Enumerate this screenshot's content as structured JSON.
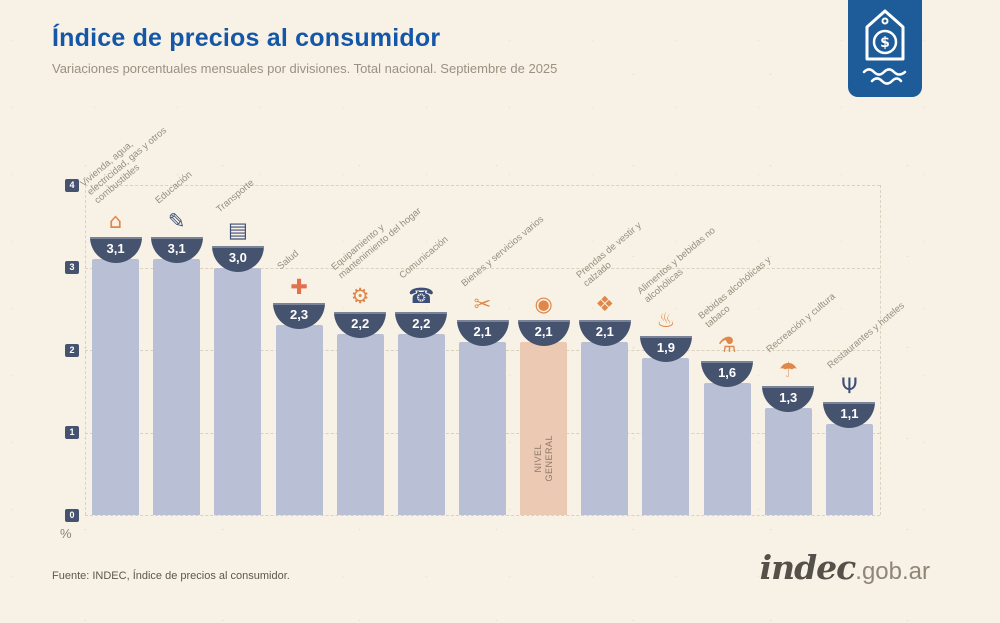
{
  "header": {
    "title": "Índice de precios al consumidor",
    "subtitle": "Variaciones porcentuales mensuales por divisiones. Total nacional. Septiembre de 2025"
  },
  "footer": {
    "source": "Fuente: INDEC, Índice de precios al consumidor.",
    "logo_main": "indec",
    "logo_suffix": ".gob.ar"
  },
  "colors": {
    "title_blue": "#1457a8",
    "background": "#f7f2e5",
    "bar": "#b9c0d6",
    "bar_highlight": "#ebc9b2",
    "bowl": "#46536f",
    "badge_blue": "#1d5c99",
    "label_gray": "#94907e"
  },
  "chart_data": {
    "type": "bar",
    "title": "Índice de precios al consumidor",
    "subtitle": "Variaciones porcentuales mensuales por divisiones. Total nacional. Septiembre de 2025",
    "xlabel": "",
    "ylabel": "%",
    "ylim": [
      0,
      4
    ],
    "yticks": [
      0,
      1,
      2,
      3,
      4
    ],
    "grid": "horizontal-dashed",
    "legend": "none",
    "highlight_category": "NIVEL GENERAL",
    "highlight_label": "NIVEL GENERAL",
    "categories": [
      "Vivienda, agua, electricidad, gas y otros combustibles",
      "Educación",
      "Transporte",
      "Salud",
      "Equipamiento y mantenimiento del hogar",
      "Comunicación",
      "Bienes y servicios varios",
      "NIVEL GENERAL",
      "Prendas de vestir y calzado",
      "Alimentos y bebidas no alcohólicas",
      "Bebidas alcohólicas y tabaco",
      "Recreación y cultura",
      "Restaurantes y hoteles"
    ],
    "values": [
      3.1,
      3.1,
      3.0,
      2.3,
      2.2,
      2.2,
      2.1,
      2.1,
      2.1,
      1.9,
      1.6,
      1.3,
      1.1
    ],
    "value_labels": [
      "3,1",
      "3,1",
      "3,0",
      "2,3",
      "2,2",
      "2,2",
      "2,1",
      "2,1",
      "2,1",
      "1,9",
      "1,6",
      "1,3",
      "1,1"
    ],
    "icons": [
      {
        "name": "housing-utilities-icon",
        "glyph": "⌂",
        "color": "#e0874b"
      },
      {
        "name": "education-icon",
        "glyph": "✎",
        "color": "#3d4f78"
      },
      {
        "name": "transport-sube-icon",
        "glyph": "▤",
        "color": "#3d4f78"
      },
      {
        "name": "health-cross-icon",
        "glyph": "✚",
        "color": "#e2714d"
      },
      {
        "name": "home-equipment-icon",
        "glyph": "⚙",
        "color": "#e0874b"
      },
      {
        "name": "communication-phone-icon",
        "glyph": "☎",
        "color": "#3d4f78"
      },
      {
        "name": "goods-services-icon",
        "glyph": "✂",
        "color": "#e0874b"
      },
      {
        "name": "grocery-basket-icon",
        "glyph": "◉",
        "color": "#e0874b"
      },
      {
        "name": "clothing-icon",
        "glyph": "❖",
        "color": "#e0874b"
      },
      {
        "name": "food-icon",
        "glyph": "♨",
        "color": "#e0874b"
      },
      {
        "name": "alcohol-tobacco-icon",
        "glyph": "⚗",
        "color": "#e0874b"
      },
      {
        "name": "recreation-umbrella-icon",
        "glyph": "☂",
        "color": "#e0874b"
      },
      {
        "name": "restaurants-cutlery-icon",
        "glyph": "Ψ",
        "color": "#3d4f78"
      }
    ]
  }
}
